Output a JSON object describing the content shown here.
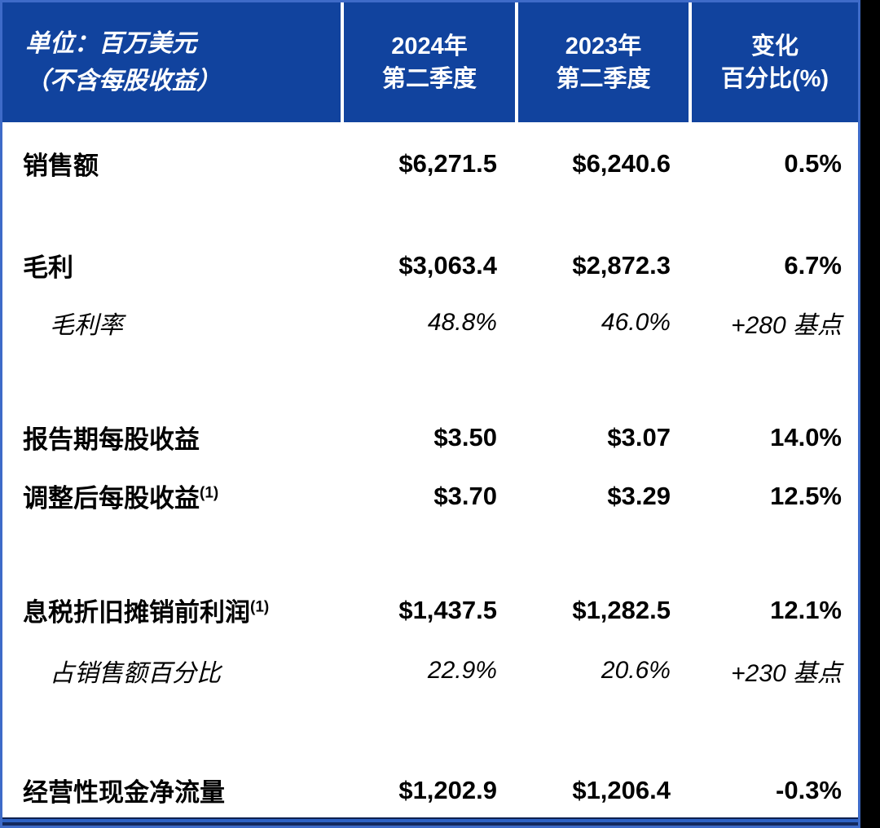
{
  "colors": {
    "header_bg": "#11439E",
    "header_text": "#FFFFFF",
    "table_border": "#3E6BC8",
    "body_text": "#000000",
    "footer_bar": "#13295E",
    "right_strip": "#000000"
  },
  "header": {
    "unit_label_line1": "单位：百万美元",
    "unit_label_line2": "（不含每股收益）",
    "col_2024_line1": "2024年",
    "col_2024_line2": "第二季度",
    "col_2023_line1": "2023年",
    "col_2023_line2": "第二季度",
    "col_change_line1": "变化",
    "col_change_line2": "百分比(%)"
  },
  "rows": [
    {
      "label": "销售额",
      "sup": "",
      "v2024": "$6,271.5",
      "v2023": "$6,240.6",
      "change": "0.5%"
    },
    {
      "label": "毛利",
      "sup": "",
      "v2024": "$3,063.4",
      "v2023": "$2,872.3",
      "change": "6.7%"
    },
    {
      "label": "毛利率",
      "sup": "",
      "v2024": "48.8%",
      "v2023": "46.0%",
      "change": "+280 基点"
    },
    {
      "label": "报告期每股收益",
      "sup": "",
      "v2024": "$3.50",
      "v2023": "$3.07",
      "change": "14.0%"
    },
    {
      "label": "调整后每股收益",
      "sup": "(1)",
      "v2024": "$3.70",
      "v2023": "$3.29",
      "change": "12.5%"
    },
    {
      "label": "息税折旧摊销前利润",
      "sup": "(1)",
      "v2024": "$1,437.5",
      "v2023": "$1,282.5",
      "change": "12.1%"
    },
    {
      "label": "占销售额百分比",
      "sup": "",
      "v2024": "22.9%",
      "v2023": "20.6%",
      "change": "+230 基点"
    },
    {
      "label": "经营性现金净流量",
      "sup": "",
      "v2024": "$1,202.9",
      "v2023": "$1,206.4",
      "change": "-0.3%"
    }
  ]
}
